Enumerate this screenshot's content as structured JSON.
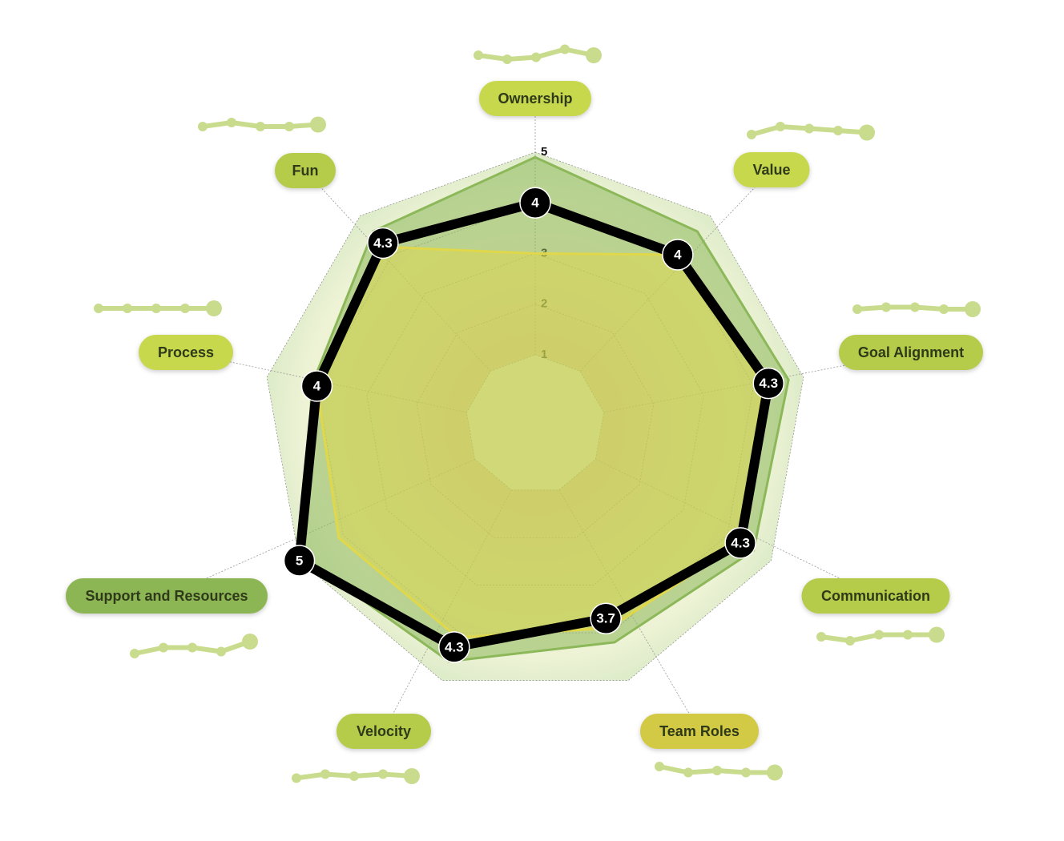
{
  "chart_data": {
    "type": "radar",
    "categories": [
      "Ownership",
      "Value",
      "Goal Alignment",
      "Communication",
      "Team Roles",
      "Velocity",
      "Support and Resources",
      "Process",
      "Fun"
    ],
    "label_colors": [
      "#c8d84c",
      "#c8d84c",
      "#b5cb4a",
      "#b5cb4a",
      "#d2c945",
      "#b5cb4a",
      "#8cb554",
      "#c8d84c",
      "#b5cb4a"
    ],
    "ylim": [
      1,
      5
    ],
    "yticks": [
      1,
      2,
      3,
      4,
      5
    ],
    "series": [
      {
        "color": "#8db85a",
        "values": [
          4.9,
          4.6,
          4.7,
          4.6,
          4.2,
          4.6,
          4.9,
          4.1,
          4.6
        ]
      },
      {
        "color": "#e0d84a",
        "values": [
          3,
          4,
          4.2,
          4.3,
          3.9,
          4.1,
          4.1,
          4,
          4.2
        ]
      },
      {
        "color": "#000000",
        "values": [
          4,
          4,
          4.3,
          4.3,
          3.7,
          4.3,
          5,
          4,
          4.3
        ]
      }
    ],
    "trend_color": "#c9dc8e",
    "trends": [
      [
        4,
        3.8,
        3.9,
        4.3,
        4
      ],
      [
        3.8,
        4.2,
        4.1,
        4,
        3.9
      ],
      [
        4,
        4.1,
        4.1,
        4,
        4
      ],
      [
        4,
        3.8,
        4.1,
        4.1,
        4.1
      ],
      [
        4.2,
        3.9,
        4,
        3.9,
        3.9
      ],
      [
        3.9,
        4.1,
        4,
        4.1,
        4
      ],
      [
        3.6,
        3.9,
        3.9,
        3.7,
        4.2
      ],
      [
        4,
        4,
        4,
        4,
        4
      ],
      [
        4,
        4.2,
        4,
        4,
        4.1
      ]
    ]
  }
}
